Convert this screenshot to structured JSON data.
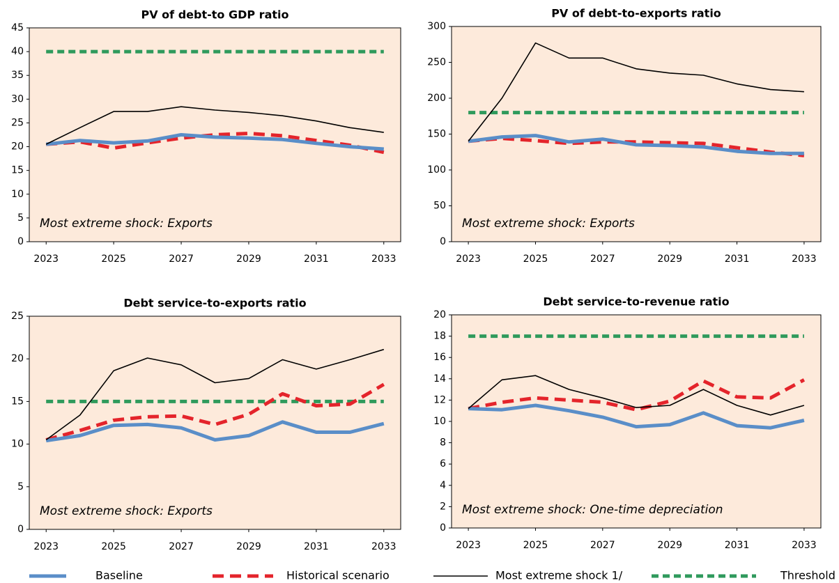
{
  "chart_data": [
    {
      "type": "line",
      "title": "PV of debt-to GDP ratio",
      "annotation": "Most extreme shock: Exports",
      "x": [
        2023,
        2024,
        2025,
        2026,
        2027,
        2028,
        2029,
        2030,
        2031,
        2032,
        2033
      ],
      "xticks": [
        2023,
        2025,
        2027,
        2029,
        2031,
        2033
      ],
      "ylim": [
        0,
        45
      ],
      "yticks": [
        0,
        5,
        10,
        15,
        20,
        25,
        30,
        35,
        40,
        45
      ],
      "series": [
        {
          "name": "Baseline",
          "color": "#5a8ec8",
          "values": [
            20.5,
            21.3,
            20.8,
            21.2,
            22.5,
            22.0,
            21.8,
            21.5,
            20.7,
            20.0,
            19.5
          ]
        },
        {
          "name": "Historical scenario",
          "color": "#e4242b",
          "values": [
            20.5,
            21.0,
            19.7,
            20.8,
            21.8,
            22.5,
            22.8,
            22.3,
            21.3,
            20.3,
            18.8
          ]
        },
        {
          "name": "Most extreme shock 1/",
          "color": "#000000",
          "values": [
            20.5,
            24.0,
            27.4,
            27.4,
            28.4,
            27.7,
            27.2,
            26.5,
            25.4,
            24.0,
            23.0
          ]
        },
        {
          "name": "Threshold",
          "color": "#2f9a5c",
          "values": [
            40,
            40,
            40,
            40,
            40,
            40,
            40,
            40,
            40,
            40,
            40
          ]
        }
      ]
    },
    {
      "type": "line",
      "title": "PV of debt-to-exports  ratio",
      "annotation": "Most extreme  shock: Exports",
      "x": [
        2023,
        2024,
        2025,
        2026,
        2027,
        2028,
        2029,
        2030,
        2031,
        2032,
        2033
      ],
      "xticks": [
        2023,
        2025,
        2027,
        2029,
        2031,
        2033
      ],
      "ylim": [
        0,
        300
      ],
      "yticks": [
        0,
        50,
        100,
        150,
        200,
        250,
        300
      ],
      "series": [
        {
          "color": "#5a8ec8",
          "values": [
            140,
            146,
            148,
            139,
            143,
            135,
            134,
            132,
            126,
            123,
            123
          ]
        },
        {
          "color": "#e4242b",
          "values": [
            140,
            144,
            141,
            137,
            139,
            139,
            138,
            137,
            131,
            125,
            120
          ]
        },
        {
          "color": "#000000",
          "values": [
            140,
            200,
            277,
            256,
            256,
            241,
            235,
            232,
            220,
            212,
            209
          ]
        },
        {
          "color": "#2f9a5c",
          "values": [
            180,
            180,
            180,
            180,
            180,
            180,
            180,
            180,
            180,
            180,
            180
          ]
        }
      ]
    },
    {
      "type": "line",
      "title": "Debt service-to-exports  ratio",
      "annotation": "Most extreme  shock:  Exports",
      "x": [
        2023,
        2024,
        2025,
        2026,
        2027,
        2028,
        2029,
        2030,
        2031,
        2032,
        2033
      ],
      "xticks": [
        2023,
        2025,
        2027,
        2029,
        2031,
        2033
      ],
      "ylim": [
        0,
        25
      ],
      "yticks": [
        0,
        5,
        10,
        15,
        20,
        25
      ],
      "series": [
        {
          "color": "#5a8ec8",
          "values": [
            10.4,
            11.0,
            12.2,
            12.3,
            11.9,
            10.5,
            11.0,
            12.6,
            11.4,
            11.4,
            12.4
          ]
        },
        {
          "color": "#e4242b",
          "values": [
            10.5,
            11.6,
            12.8,
            13.2,
            13.3,
            12.3,
            13.5,
            15.9,
            14.5,
            14.7,
            17.0
          ]
        },
        {
          "color": "#000000",
          "values": [
            10.5,
            13.4,
            18.6,
            20.1,
            19.3,
            17.2,
            17.7,
            19.9,
            18.8,
            19.9,
            21.1
          ]
        },
        {
          "color": "#2f9a5c",
          "values": [
            15,
            15,
            15,
            15,
            15,
            15,
            15,
            15,
            15,
            15,
            15
          ]
        }
      ]
    },
    {
      "type": "line",
      "title": "Debt service-to-revenue  ratio",
      "annotation": "Most extreme  shock:  One-time  depreciation",
      "x": [
        2023,
        2024,
        2025,
        2026,
        2027,
        2028,
        2029,
        2030,
        2031,
        2032,
        2033
      ],
      "xticks": [
        2023,
        2025,
        2027,
        2029,
        2031,
        2033
      ],
      "ylim": [
        0,
        20
      ],
      "yticks": [
        0,
        2,
        4,
        6,
        8,
        10,
        12,
        14,
        16,
        18,
        20
      ],
      "series": [
        {
          "color": "#5a8ec8",
          "values": [
            11.2,
            11.1,
            11.5,
            11.0,
            10.4,
            9.5,
            9.7,
            10.8,
            9.6,
            9.4,
            10.1
          ]
        },
        {
          "color": "#e4242b",
          "values": [
            11.2,
            11.8,
            12.2,
            12.0,
            11.8,
            11.1,
            11.9,
            13.8,
            12.3,
            12.2,
            13.9
          ]
        },
        {
          "color": "#000000",
          "values": [
            11.2,
            13.9,
            14.3,
            13.0,
            12.2,
            11.3,
            11.5,
            13.0,
            11.5,
            10.6,
            11.5
          ]
        },
        {
          "color": "#2f9a5c",
          "values": [
            18,
            18,
            18,
            18,
            18,
            18,
            18,
            18,
            18,
            18,
            18
          ]
        }
      ]
    }
  ]
}
